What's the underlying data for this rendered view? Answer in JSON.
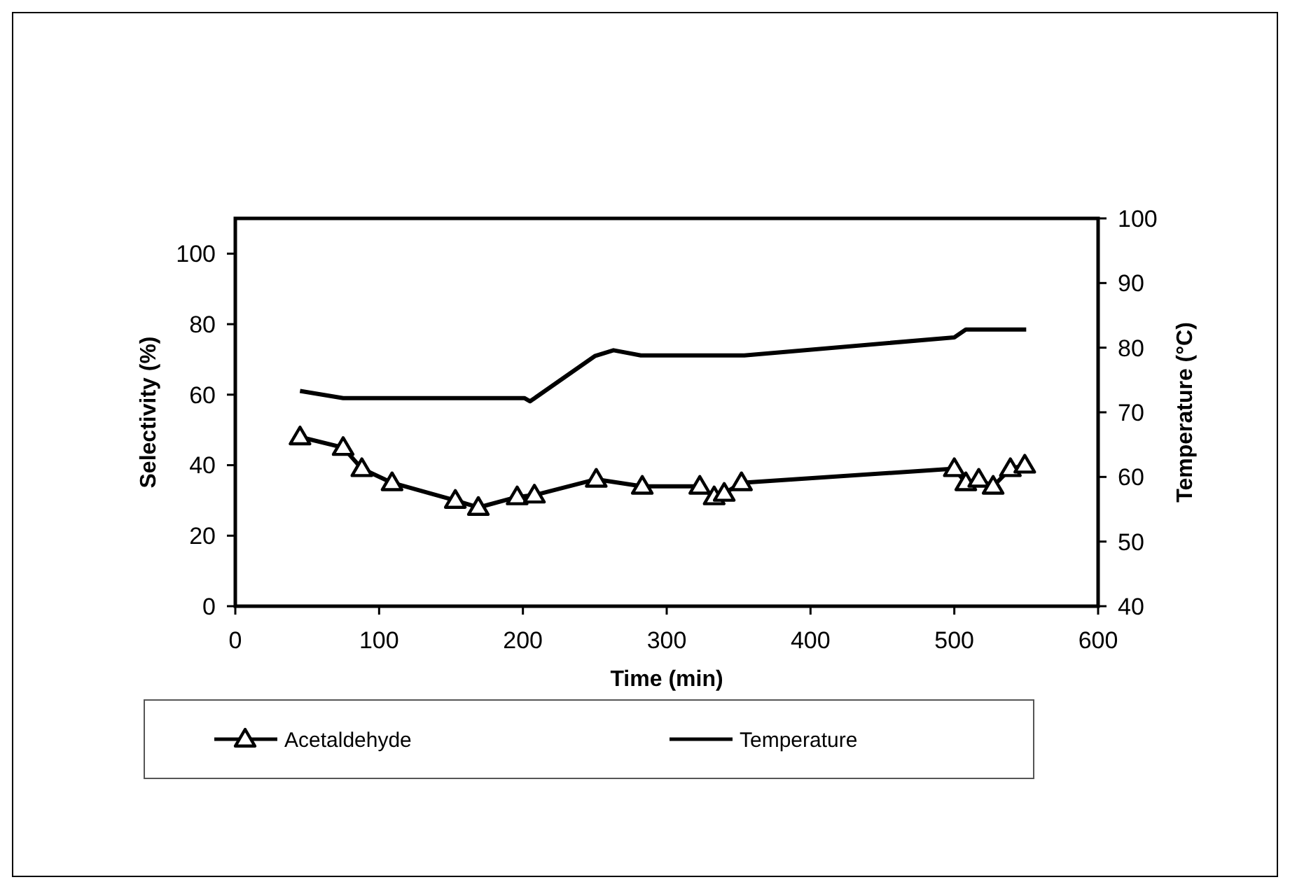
{
  "chart_data": {
    "type": "line",
    "xlabel": "Time (min)",
    "ylabel": "Selectivity (%)",
    "y2label": "Temperature (°C)",
    "xlim": [
      0,
      600
    ],
    "xticks": [
      0,
      100,
      200,
      300,
      400,
      500,
      600
    ],
    "ylim": [
      0,
      110
    ],
    "yticks": [
      0,
      20,
      40,
      60,
      80,
      100
    ],
    "y2lim": [
      40,
      100
    ],
    "y2ticks": [
      40,
      50,
      60,
      70,
      80,
      90,
      100
    ],
    "grid": false,
    "legend": "bottom",
    "line_style": "solid",
    "series": [
      {
        "name": "Acetaldehyde",
        "color": "#000000",
        "marker": "triangle",
        "x": [
          45,
          75,
          88,
          109,
          153,
          169,
          196,
          208,
          251,
          283,
          323,
          333,
          340,
          352,
          500,
          508,
          517,
          527,
          539,
          549
        ],
        "values": [
          48,
          45,
          39,
          35,
          30,
          28,
          31,
          31.5,
          36,
          34,
          34,
          31,
          32,
          35,
          39,
          35,
          36,
          34,
          39,
          40
        ]
      },
      {
        "name": "Temperature",
        "color": "#000000",
        "marker": "none",
        "axis": "y2",
        "x": [
          45,
          75,
          201,
          205,
          250,
          263,
          282,
          354,
          500,
          508,
          550
        ],
        "values": [
          73.3,
          72.2,
          72.2,
          71.7,
          78.7,
          79.6,
          78.8,
          78.8,
          81.6,
          82.8,
          82.8
        ]
      }
    ]
  }
}
